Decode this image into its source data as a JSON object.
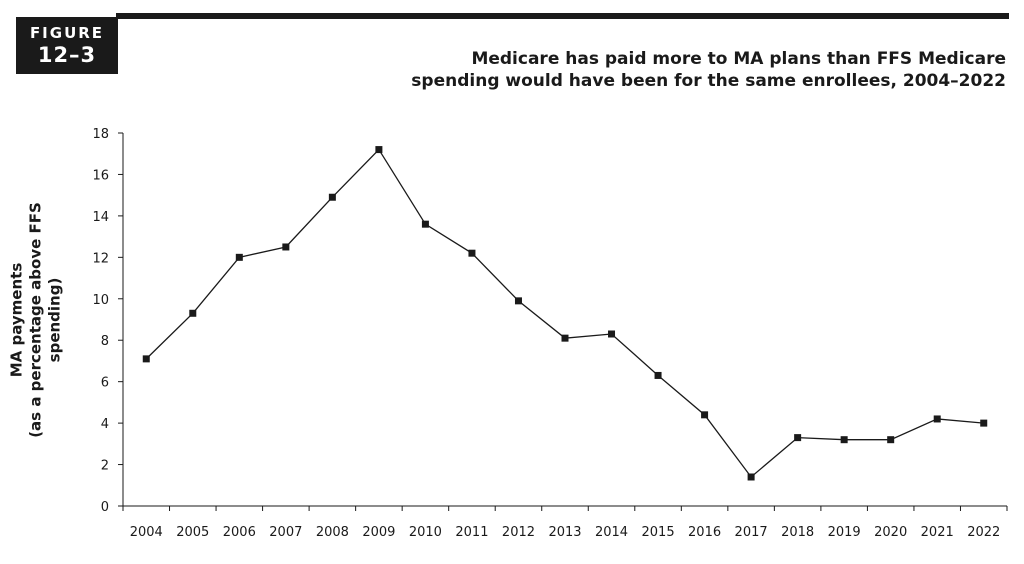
{
  "figure": {
    "word": "FIGURE",
    "number": "12–3"
  },
  "chart_data": {
    "type": "line",
    "title": "Medicare has paid more to MA plans than FFS Medicare spending would have been for the same enrollees, 2004–2022",
    "title_line1": "Medicare has paid more to MA plans than FFS Medicare",
    "title_line2": "spending would have been for the same enrollees, 2004–2022",
    "xlabel": "",
    "ylabel_line1": "MA payments",
    "ylabel_line2": "(as a percentage above FFS spending)",
    "ylim": [
      0,
      18
    ],
    "yticks": [
      0,
      2,
      4,
      6,
      8,
      10,
      12,
      14,
      16,
      18
    ],
    "categories": [
      "2004",
      "2005",
      "2006",
      "2007",
      "2008",
      "2009",
      "2010",
      "2011",
      "2012",
      "2013",
      "2014",
      "2015",
      "2016",
      "2017",
      "2018",
      "2019",
      "2020",
      "2021",
      "2022"
    ],
    "values": [
      7.1,
      9.3,
      12.0,
      12.5,
      14.9,
      17.2,
      13.6,
      12.2,
      9.9,
      8.1,
      8.3,
      6.3,
      4.4,
      1.4,
      3.3,
      3.2,
      3.2,
      4.2,
      4.0
    ],
    "marker": "square",
    "line_color": "#1a1a1a",
    "grid": false
  }
}
